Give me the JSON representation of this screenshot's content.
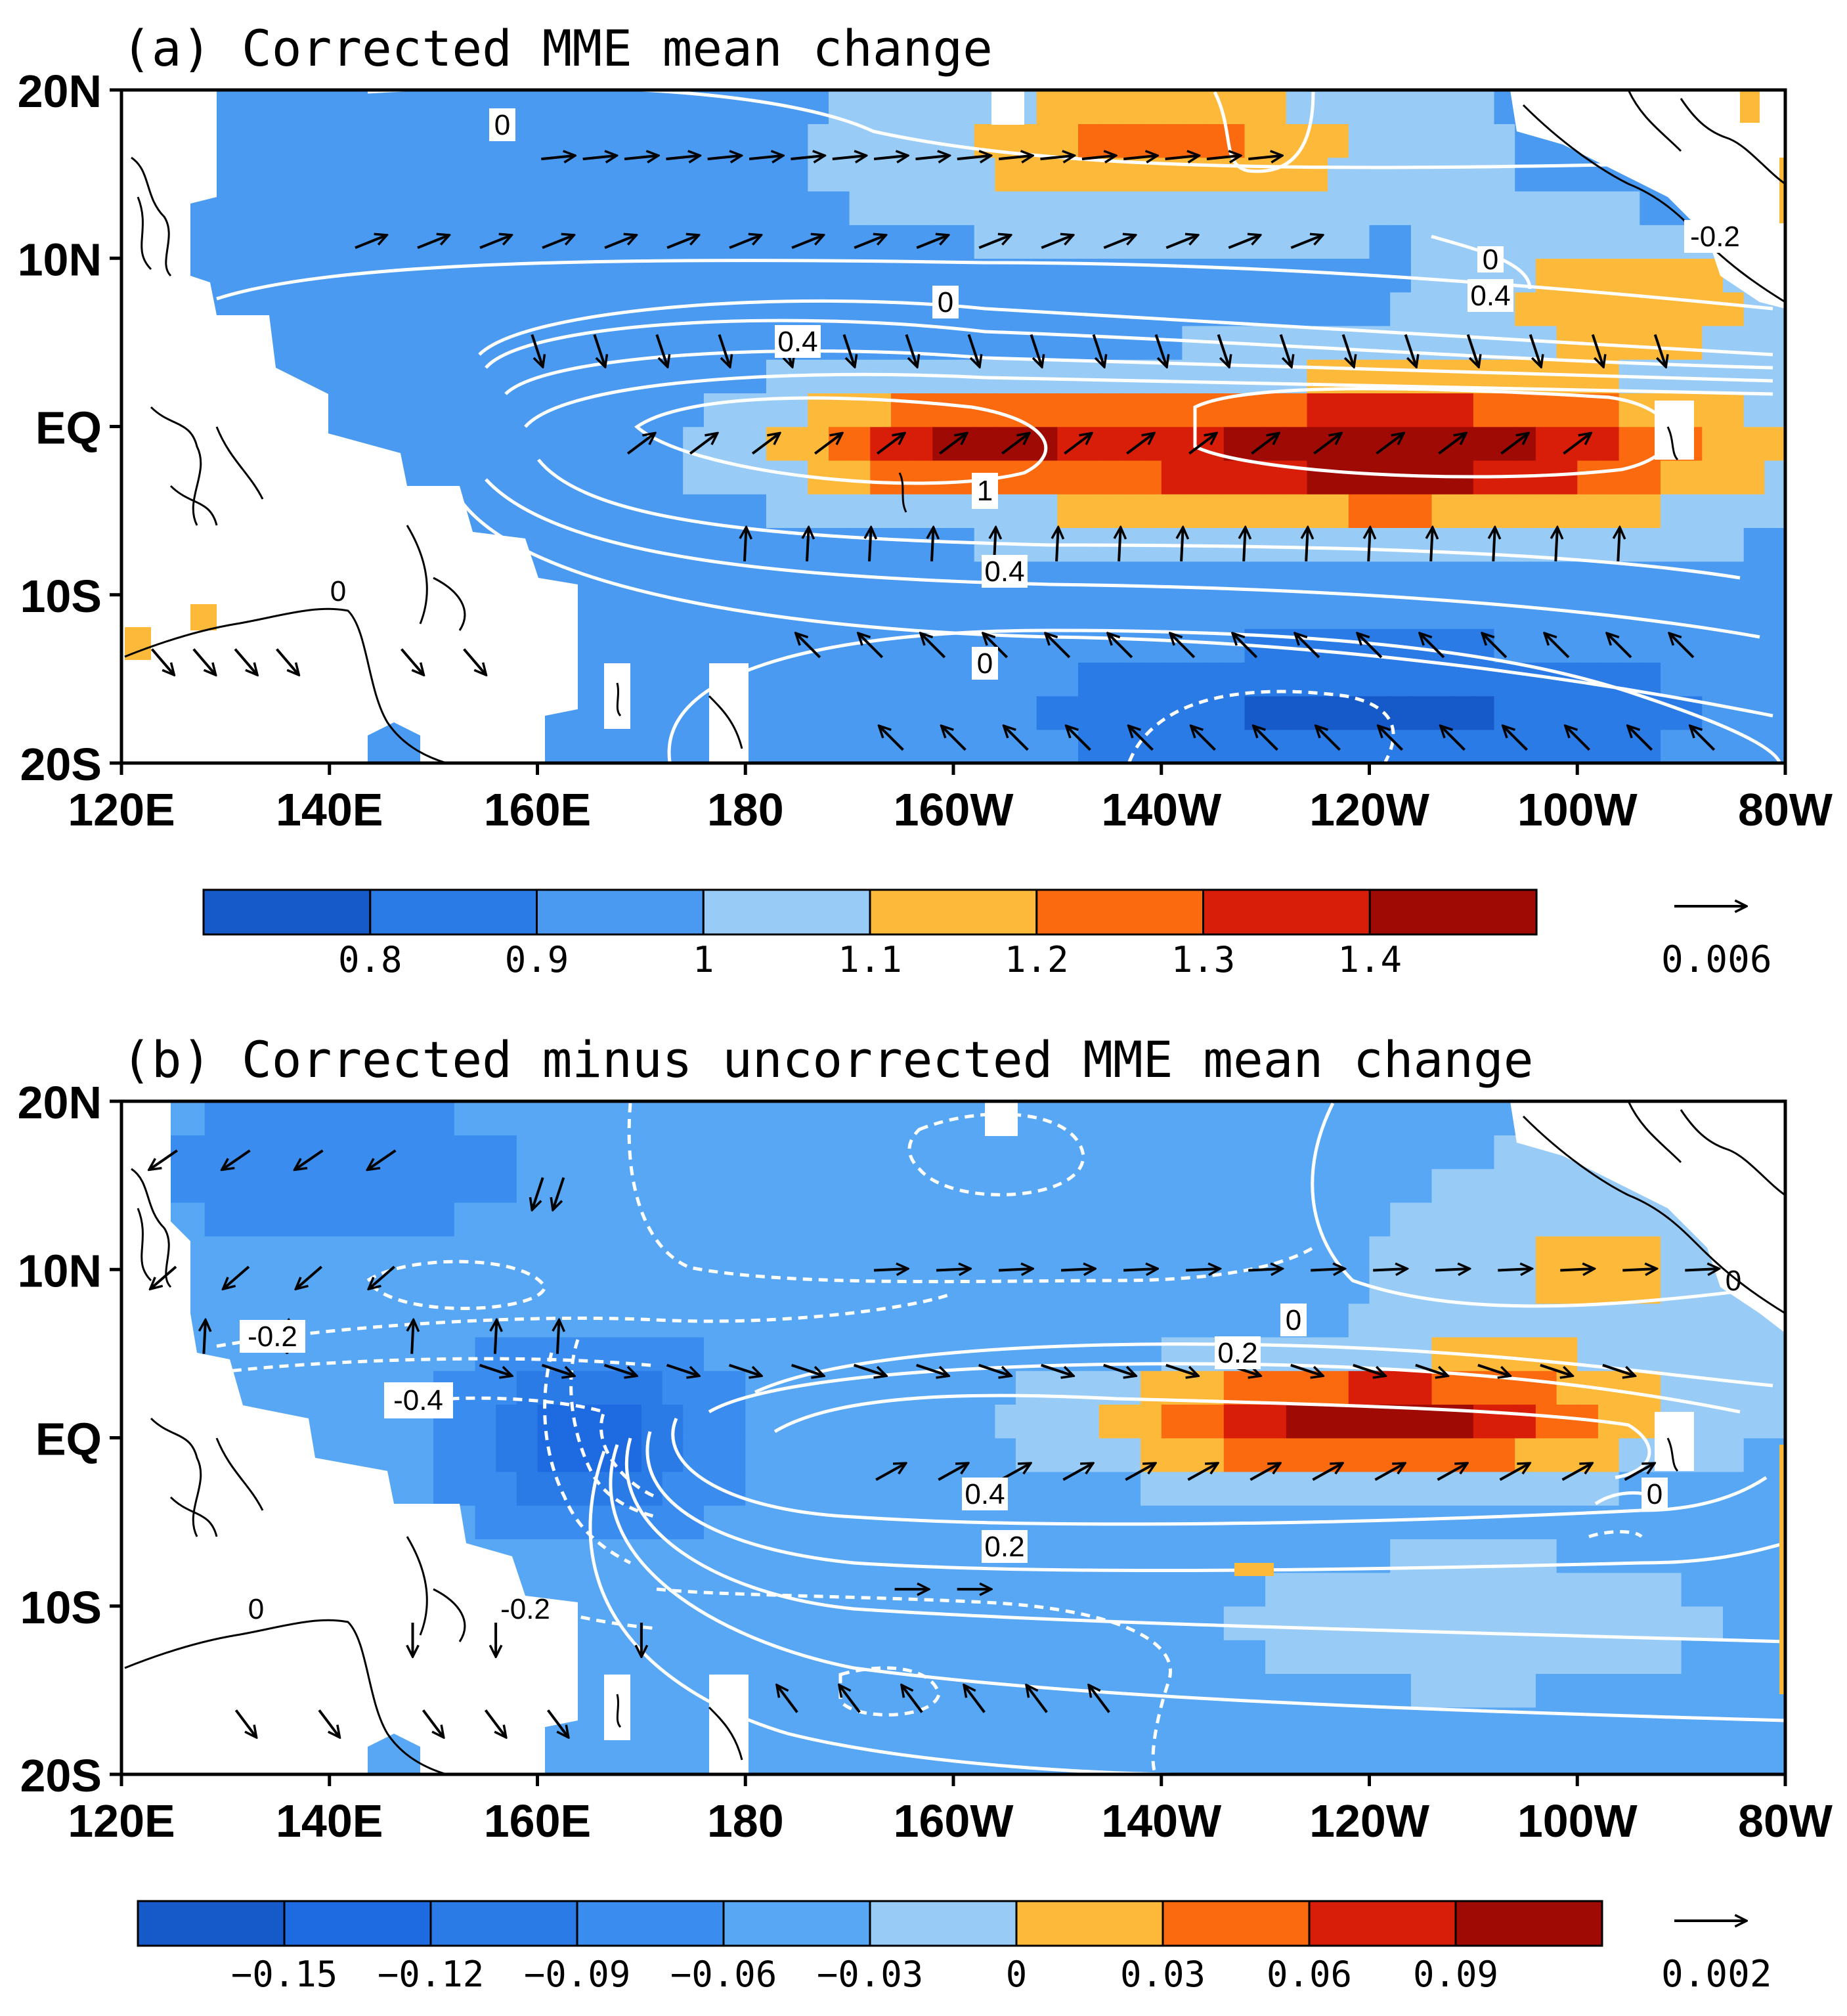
{
  "colors": {
    "dark_blue": "#1659c8",
    "blue": "#2b7be6",
    "mid_blue": "#4a9af2",
    "light_blue": "#98ccf7",
    "orange": "#fdba3a",
    "dark_orange": "#fb6a0f",
    "red": "#d81e08",
    "dark_red": "#a00a04",
    "contour": "#ffffff",
    "land": "#ffffff",
    "coast": "#000000"
  },
  "chart_data": [
    {
      "panel": "a",
      "type": "heatmap",
      "title": "(a) Corrected MME mean change",
      "xlim": [
        120,
        280
      ],
      "ylim": [
        -20,
        20
      ],
      "x_tick_labels": [
        "120E",
        "140E",
        "160E",
        "180",
        "160W",
        "140W",
        "120W",
        "100W",
        "80W"
      ],
      "y_tick_labels": [
        "20N",
        "10N",
        "EQ",
        "10S",
        "20S"
      ],
      "colorbar": {
        "tick_labels": [
          "0.8",
          "0.9",
          "1",
          "1.1",
          "1.2",
          "1.3",
          "1.4"
        ],
        "levels": [
          0.8,
          0.9,
          1.0,
          1.1,
          1.2,
          1.3,
          1.4
        ],
        "colors": [
          "#1659c8",
          "#2b7be6",
          "#4a9af2",
          "#98ccf7",
          "#fdba3a",
          "#fb6a0f",
          "#d81e08",
          "#a00a04"
        ]
      },
      "reference_vector": "0.006",
      "contour_labels": [
        "0",
        "0",
        "0.4",
        "1",
        "0.4",
        "0",
        "0",
        "0",
        "0.4",
        "-0.2",
        "0"
      ],
      "field": {
        "bg": 0.98,
        "blobs": [
          {
            "lon": 242,
            "lat": -1.5,
            "slon": 32,
            "slat": 3.8,
            "amp": 0.52
          },
          {
            "lon": 200,
            "lat": -1.0,
            "slon": 16,
            "slat": 3.0,
            "amp": 0.34
          },
          {
            "lon": 220,
            "lat": 16.5,
            "slon": 22,
            "slat": 4.0,
            "amp": 0.25
          },
          {
            "lon": 265,
            "lat": 7.5,
            "slon": 14,
            "slat": 3.5,
            "amp": 0.22
          },
          {
            "lon": 240,
            "lat": -17,
            "slon": 34,
            "slat": 4.5,
            "amp": -0.2
          },
          {
            "lon": 145,
            "lat": 0,
            "slon": 18,
            "slat": 6,
            "amp": -0.08
          }
        ]
      },
      "vectors": [
        {
          "lat": 16,
          "lons": [
            162,
            166,
            170,
            174,
            178,
            182,
            186,
            190,
            194,
            198,
            202,
            206,
            210,
            214,
            218,
            222,
            226,
            230
          ],
          "dx": 1,
          "dy": 0.1
        },
        {
          "lat": 11,
          "lons": [
            144,
            150,
            156,
            162,
            168,
            174,
            180,
            186,
            192,
            198,
            204,
            210,
            216,
            222,
            228,
            234
          ],
          "dx": 1,
          "dy": 0.4
        },
        {
          "lat": 4.5,
          "lons": [
            160,
            166,
            172,
            178,
            184,
            190,
            196,
            202,
            208,
            214,
            220,
            226,
            232,
            238,
            244,
            250,
            256,
            262,
            268
          ],
          "dx": 0.3,
          "dy": -0.9
        },
        {
          "lat": -1,
          "lons": [
            170,
            176,
            182,
            188,
            194,
            200,
            206,
            212,
            218,
            224,
            230,
            236,
            242,
            248,
            254,
            260
          ],
          "dx": 0.8,
          "dy": 0.6
        },
        {
          "lat": -7,
          "lons": [
            180,
            186,
            192,
            198,
            204,
            210,
            216,
            222,
            228,
            234,
            240,
            246,
            252,
            258,
            264
          ],
          "dx": 0.05,
          "dy": 1
        },
        {
          "lat": -13,
          "lons": [
            186,
            192,
            198,
            204,
            210,
            216,
            222,
            228,
            234,
            240,
            246,
            252,
            258,
            264,
            270
          ],
          "dx": -0.7,
          "dy": 0.7
        },
        {
          "lat": -18.5,
          "lons": [
            194,
            200,
            206,
            212,
            218,
            224,
            230,
            236,
            242,
            248,
            254,
            260,
            266,
            272
          ],
          "dx": -0.7,
          "dy": 0.7
        },
        {
          "lat": -14,
          "lons": [
            124,
            128,
            132,
            136,
            148,
            154
          ],
          "dx": 0.6,
          "dy": -0.7
        }
      ]
    },
    {
      "panel": "b",
      "type": "heatmap",
      "title": "(b) Corrected minus uncorrected MME mean change",
      "xlim": [
        120,
        280
      ],
      "ylim": [
        -20,
        20
      ],
      "x_tick_labels": [
        "120E",
        "140E",
        "160E",
        "180",
        "160W",
        "140W",
        "120W",
        "100W",
        "80W"
      ],
      "y_tick_labels": [
        "20N",
        "10N",
        "EQ",
        "10S",
        "20S"
      ],
      "colorbar": {
        "tick_labels": [
          "−0.15",
          "−0.12",
          "−0.09",
          "−0.06",
          "−0.03",
          "0",
          "0.03",
          "0.06",
          "0.09"
        ],
        "levels": [
          -0.15,
          -0.12,
          -0.09,
          -0.06,
          -0.03,
          0,
          0.03,
          0.06,
          0.09
        ],
        "colors": [
          "#1659c8",
          "#1e6ae0",
          "#2b7be6",
          "#3a8cee",
          "#58a7f4",
          "#98ccf7",
          "#fdba3a",
          "#fb6a0f",
          "#d81e08",
          "#a00a04"
        ]
      },
      "reference_vector": "0.002",
      "contour_labels": [
        "-0.2",
        "-0.4",
        "0",
        "0.2",
        "0.4",
        "0.2",
        "0",
        "0",
        "-0.2",
        "0"
      ],
      "field": {
        "bg": -0.045,
        "blobs": [
          {
            "lon": 240,
            "lat": 1.0,
            "slon": 24,
            "slat": 3.2,
            "amp": 0.15
          },
          {
            "lon": 165,
            "lat": 0,
            "slon": 12,
            "slat": 5,
            "amp": -0.09
          },
          {
            "lon": 262,
            "lat": 10,
            "slon": 20,
            "slat": 7,
            "amp": 0.05
          },
          {
            "lon": 250,
            "lat": -11,
            "slon": 28,
            "slat": 5,
            "amp": 0.03
          },
          {
            "lon": 140,
            "lat": 16,
            "slon": 22,
            "slat": 5,
            "amp": -0.03
          }
        ]
      },
      "vectors": [
        {
          "lat": 16.5,
          "lons": [
            124,
            131,
            138,
            145
          ],
          "dx": -0.8,
          "dy": -0.55
        },
        {
          "lat": 14.5,
          "lons": [
            160,
            162
          ],
          "dx": -0.3,
          "dy": -0.9
        },
        {
          "lat": 10,
          "lons": [
            194,
            200,
            206,
            212,
            218,
            224,
            230,
            236,
            242,
            248,
            254,
            260,
            266,
            272
          ],
          "dx": 1,
          "dy": 0.05
        },
        {
          "lat": 9.5,
          "lons": [
            124,
            131,
            138,
            145
          ],
          "dx": -0.75,
          "dy": -0.65
        },
        {
          "lat": 4,
          "lons": [
            156,
            162,
            168,
            174,
            180,
            186,
            192,
            198,
            204,
            210,
            216,
            222,
            228,
            234,
            240,
            246,
            252,
            258,
            264
          ],
          "dx": 0.9,
          "dy": -0.3
        },
        {
          "lat": 6,
          "lons": [
            128,
            136,
            148,
            156,
            162
          ],
          "dx": 0.05,
          "dy": 1
        },
        {
          "lat": -2,
          "lons": [
            194,
            200,
            206,
            212,
            218,
            224,
            230,
            236,
            242,
            248,
            254,
            260,
            266
          ],
          "dx": 0.9,
          "dy": 0.5
        },
        {
          "lat": -9,
          "lons": [
            196,
            202
          ],
          "dx": 1,
          "dy": 0
        },
        {
          "lat": -12,
          "lons": [
            148,
            156,
            170
          ],
          "dx": 0,
          "dy": -1
        },
        {
          "lat": -15.5,
          "lons": [
            184,
            190,
            196,
            202,
            208,
            214
          ],
          "dx": -0.6,
          "dy": 0.8
        },
        {
          "lat": -17,
          "lons": [
            132,
            140,
            150,
            156,
            162
          ],
          "dx": 0.6,
          "dy": -0.8
        }
      ]
    }
  ]
}
